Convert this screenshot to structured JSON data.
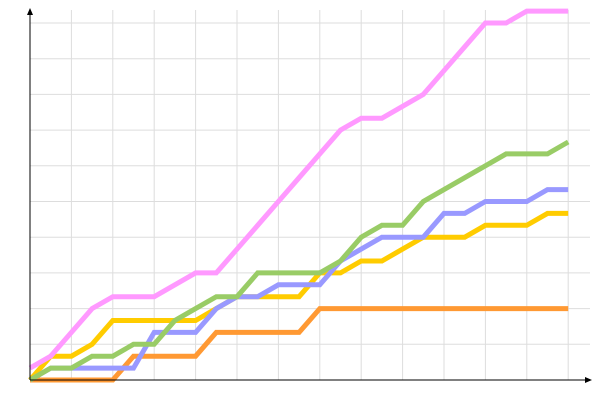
{
  "chart_data": {
    "type": "line",
    "title": "",
    "xlabel": "",
    "ylabel": "",
    "x": [
      0,
      1,
      2,
      3,
      4,
      5,
      6,
      7,
      8,
      9,
      10,
      11,
      12,
      13,
      14,
      15,
      16,
      17,
      18,
      19,
      20,
      21,
      22,
      23,
      24,
      25,
      26
    ],
    "xlim": [
      0,
      27
    ],
    "ylim": [
      0,
      31
    ],
    "x_grid_step": 2,
    "y_grid_step": 3,
    "grid": true,
    "legend": "none",
    "series": [
      {
        "color": "#ff9933",
        "values": [
          0,
          0,
          0,
          0,
          0,
          2,
          2,
          2,
          2,
          4,
          4,
          4,
          4,
          4,
          6,
          6,
          6,
          6,
          6,
          6,
          6,
          6,
          6,
          6,
          6,
          6,
          6
        ]
      },
      {
        "color": "#ffcc00",
        "values": [
          0,
          2,
          2,
          3,
          5,
          5,
          5,
          5,
          5,
          6,
          7,
          7,
          7,
          7,
          9,
          9,
          10,
          10,
          11,
          12,
          12,
          12,
          13,
          13,
          13,
          14,
          14
        ]
      },
      {
        "color": "#9999ff",
        "values": [
          0,
          1,
          1,
          1,
          1,
          1,
          4,
          4,
          4,
          6,
          7,
          7,
          8,
          8,
          8,
          10,
          11,
          12,
          12,
          12,
          14,
          14,
          15,
          15,
          15,
          16,
          16
        ]
      },
      {
        "color": "#99cc66",
        "values": [
          0,
          1,
          1,
          2,
          2,
          3,
          3,
          5,
          6,
          7,
          7,
          9,
          9,
          9,
          9,
          10,
          12,
          13,
          13,
          15,
          16,
          17,
          18,
          19,
          19,
          19,
          20
        ]
      },
      {
        "color": "#ff99ff",
        "values": [
          1,
          2,
          4,
          6,
          7,
          7,
          7,
          8,
          9,
          9,
          11,
          13,
          15,
          17,
          19,
          21,
          22,
          22,
          23,
          24,
          26,
          28,
          30,
          30,
          31,
          31,
          31
        ]
      }
    ]
  }
}
